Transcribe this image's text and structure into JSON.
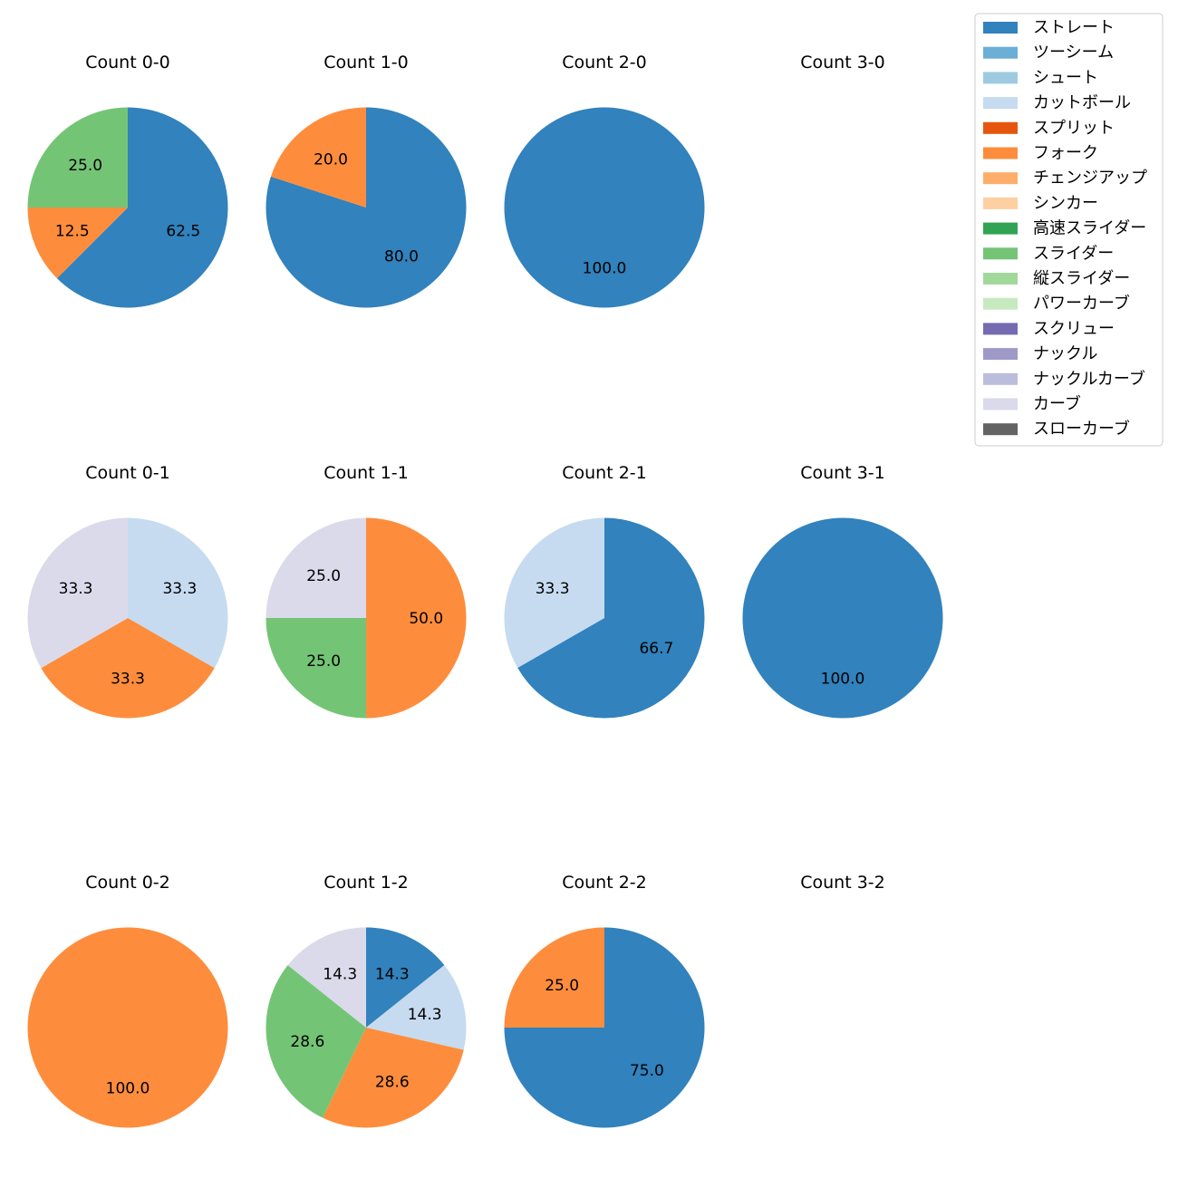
{
  "pitch_colors": {
    "ストレート": "#3182bd",
    "ツーシーム": "#6baed6",
    "シュート": "#9ecae1",
    "カットボール": "#c6dbef",
    "スプリット": "#e6550d",
    "フォーク": "#fd8d3c",
    "チェンジアップ": "#fdae6b",
    "シンカー": "#fdd0a2",
    "高速スライダー": "#31a354",
    "スライダー": "#74c476",
    "縦スライダー": "#a1d99b",
    "パワーカーブ": "#c7e9c0",
    "スクリュー": "#756bb1",
    "ナックル": "#9e9ac8",
    "ナックルカーブ": "#bcbddc",
    "カーブ": "#dadaeb",
    "スローカーブ": "#636363"
  },
  "chart_data": {
    "type": "pie",
    "legend": {
      "placement": "top-right",
      "entries": [
        "ストレート",
        "ツーシーム",
        "シュート",
        "カットボール",
        "スプリット",
        "フォーク",
        "チェンジアップ",
        "シンカー",
        "高速スライダー",
        "スライダー",
        "縦スライダー",
        "パワーカーブ",
        "スクリュー",
        "ナックル",
        "ナックルカーブ",
        "カーブ",
        "スローカーブ"
      ]
    },
    "panels": [
      {
        "title": "Count 0-0",
        "slices": [
          {
            "pitch": "ストレート",
            "value": 62.5,
            "label": "62.5"
          },
          {
            "pitch": "フォーク",
            "value": 12.5,
            "label": "12.5"
          },
          {
            "pitch": "スライダー",
            "value": 25.0,
            "label": "25.0"
          }
        ]
      },
      {
        "title": "Count 1-0",
        "slices": [
          {
            "pitch": "ストレート",
            "value": 80.0,
            "label": "80.0"
          },
          {
            "pitch": "フォーク",
            "value": 20.0,
            "label": "20.0"
          }
        ]
      },
      {
        "title": "Count 2-0",
        "slices": [
          {
            "pitch": "ストレート",
            "value": 100.0,
            "label": "100.0"
          }
        ]
      },
      {
        "title": "Count 3-0",
        "slices": []
      },
      {
        "title": "Count 0-1",
        "slices": [
          {
            "pitch": "カットボール",
            "value": 33.3,
            "label": "33.3"
          },
          {
            "pitch": "フォーク",
            "value": 33.3,
            "label": "33.3"
          },
          {
            "pitch": "カーブ",
            "value": 33.3,
            "label": "33.3"
          }
        ]
      },
      {
        "title": "Count 1-1",
        "slices": [
          {
            "pitch": "フォーク",
            "value": 50.0,
            "label": "50.0"
          },
          {
            "pitch": "スライダー",
            "value": 25.0,
            "label": "25.0"
          },
          {
            "pitch": "カーブ",
            "value": 25.0,
            "label": "25.0"
          }
        ]
      },
      {
        "title": "Count 2-1",
        "slices": [
          {
            "pitch": "ストレート",
            "value": 66.7,
            "label": "66.7"
          },
          {
            "pitch": "カットボール",
            "value": 33.3,
            "label": "33.3"
          }
        ]
      },
      {
        "title": "Count 3-1",
        "slices": [
          {
            "pitch": "ストレート",
            "value": 100.0,
            "label": "100.0"
          }
        ]
      },
      {
        "title": "Count 0-2",
        "slices": [
          {
            "pitch": "フォーク",
            "value": 100.0,
            "label": "100.0"
          }
        ]
      },
      {
        "title": "Count 1-2",
        "slices": [
          {
            "pitch": "ストレート",
            "value": 14.3,
            "label": "14.3"
          },
          {
            "pitch": "カットボール",
            "value": 14.3,
            "label": "14.3"
          },
          {
            "pitch": "フォーク",
            "value": 28.6,
            "label": "28.6"
          },
          {
            "pitch": "スライダー",
            "value": 28.6,
            "label": "28.6"
          },
          {
            "pitch": "カーブ",
            "value": 14.3,
            "label": "14.3"
          }
        ]
      },
      {
        "title": "Count 2-2",
        "slices": [
          {
            "pitch": "ストレート",
            "value": 75.0,
            "label": "75.0"
          },
          {
            "pitch": "フォーク",
            "value": 25.0,
            "label": "25.0"
          }
        ]
      },
      {
        "title": "Count 3-2",
        "slices": []
      }
    ]
  }
}
